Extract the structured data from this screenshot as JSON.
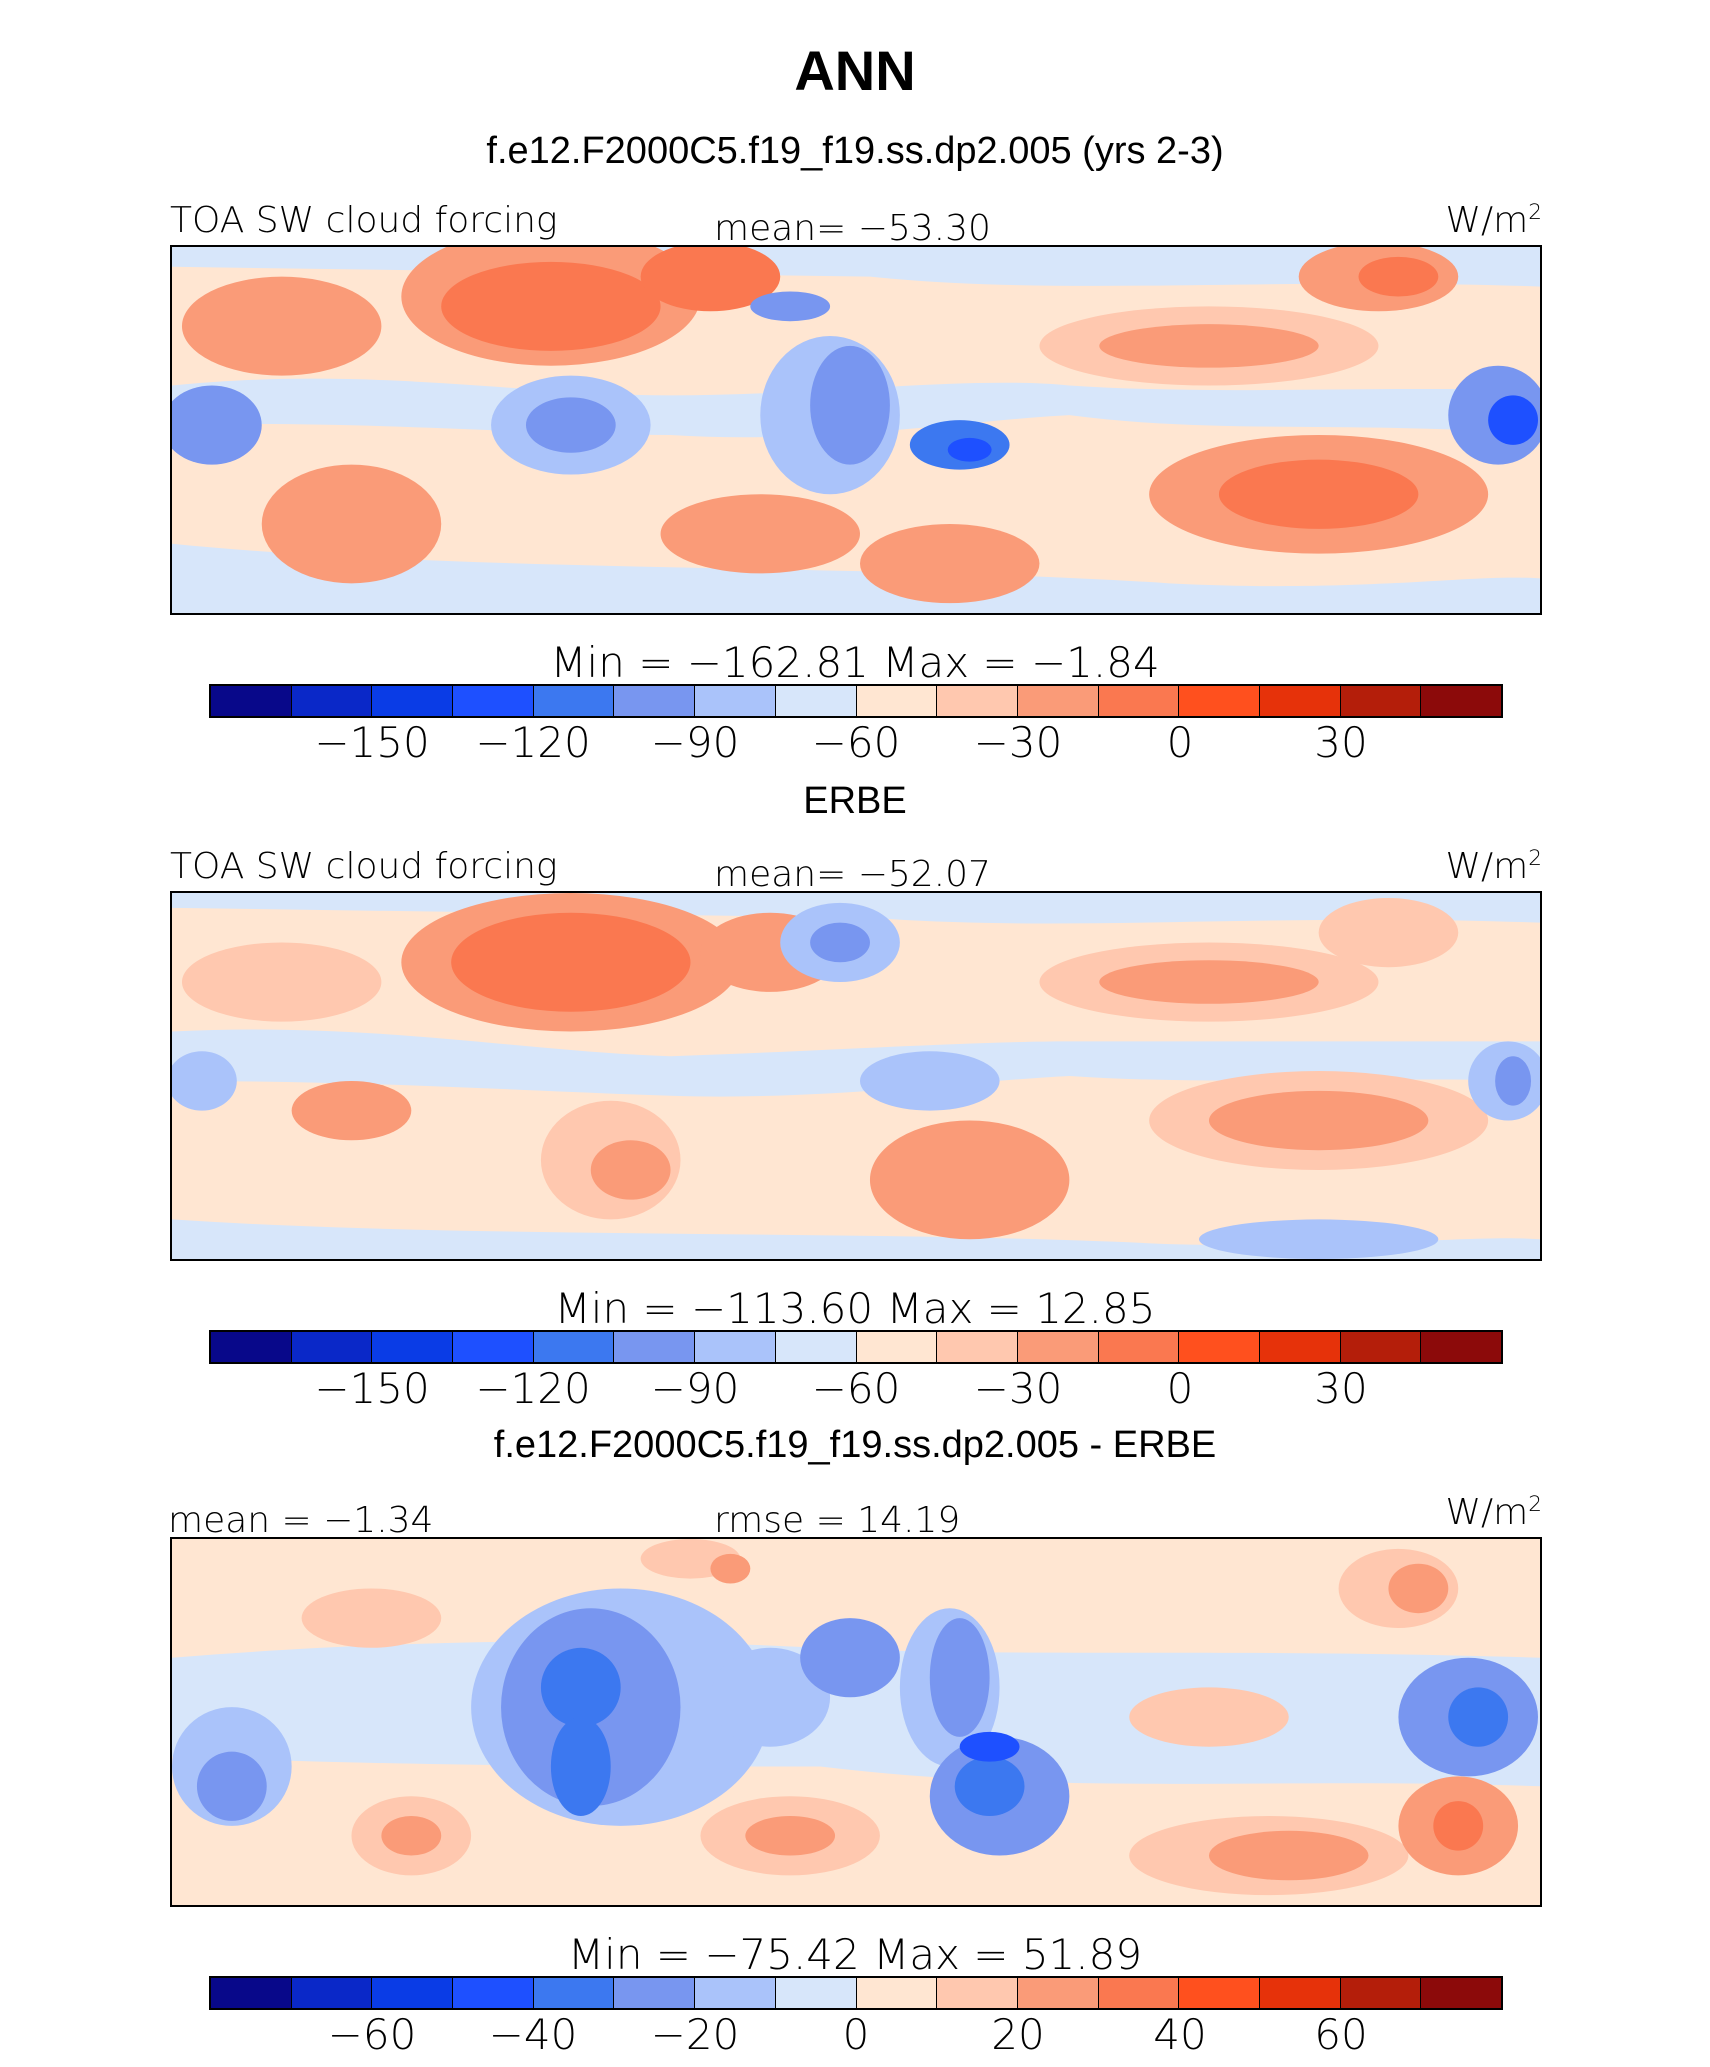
{
  "title": "ANN",
  "colors": [
    "#08088a",
    "#0a28c8",
    "#0a3ce6",
    "#1e50ff",
    "#3c78f0",
    "#7896f0",
    "#aac3fa",
    "#d7e6fa",
    "#ffe6d2",
    "#ffc8af",
    "#fa9b78",
    "#fa7850",
    "#ff501e",
    "#e6320a",
    "#b41e0a",
    "#8c0a0a"
  ],
  "panels": [
    {
      "header": "f.e12.F2000C5.f19_f19.ss.dp2.005 (yrs 2-3)",
      "left_label": "TOA SW cloud forcing",
      "center_label": "mean=  −53.30",
      "units": "W/m",
      "units_sup": "2",
      "stats": "Min  =  −162.81  Max  =   −1.84",
      "ticks": [
        "−150",
        "−120",
        "−90",
        "−60",
        "−30",
        "0",
        "30"
      ]
    },
    {
      "header": "ERBE",
      "left_label": "TOA SW cloud forcing",
      "center_label": "mean=  −52.07",
      "units": "W/m",
      "units_sup": "2",
      "stats": "Min  =  −113.60  Max  =    12.85",
      "ticks": [
        "−150",
        "−120",
        "−90",
        "−60",
        "−30",
        "0",
        "30"
      ]
    },
    {
      "header": "f.e12.F2000C5.f19_f19.ss.dp2.005 - ERBE",
      "left_label": "mean  =   −1.34",
      "center_label": "rmse  =   14.19",
      "units": "W/m",
      "units_sup": "2",
      "stats": "Min  =  −75.42  Max  =   51.89",
      "ticks": [
        "−60",
        "−40",
        "−20",
        "0",
        "20",
        "40",
        "60"
      ]
    }
  ]
}
